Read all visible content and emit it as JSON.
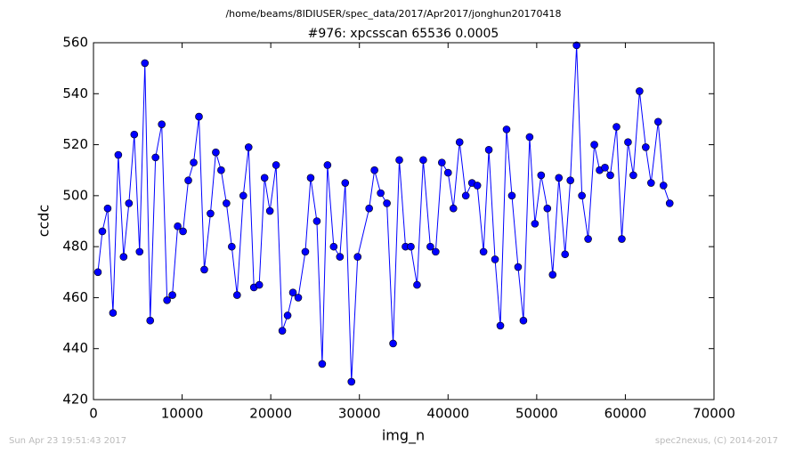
{
  "chart_data": {
    "type": "line",
    "suptitle": "/home/beams/8IDIUSER/spec_data/2017/Apr2017/jonghun20170418",
    "title": "#976: xpcsscan 65536 0.0005",
    "x_label": "img_n",
    "y_label": "ccdc",
    "footer_left": "Sun Apr 23 19:51:43 2017",
    "footer_right": "spec2nexus, (C) 2014-2017",
    "x": [
      500,
      1000,
      1600,
      2200,
      2800,
      3400,
      4000,
      4600,
      5200,
      5800,
      6400,
      7000,
      7700,
      8300,
      8900,
      9500,
      10100,
      10700,
      11300,
      11900,
      12500,
      13200,
      13800,
      14400,
      15000,
      15600,
      16200,
      16900,
      17500,
      18100,
      18700,
      19300,
      19900,
      20600,
      21300,
      21900,
      22500,
      23100,
      23900,
      24500,
      25200,
      25800,
      26400,
      27100,
      27800,
      28400,
      29100,
      29800,
      31100,
      31700,
      32400,
      33100,
      33800,
      34500,
      35200,
      35800,
      36500,
      37200,
      38000,
      38600,
      39300,
      40000,
      40600,
      41300,
      42000,
      42700,
      43300,
      44000,
      44600,
      45300,
      45900,
      46600,
      47200,
      47900,
      48500,
      49200,
      49800,
      50500,
      51200,
      51800,
      52500,
      53200,
      53800,
      54500,
      55100,
      55800,
      56500,
      57100,
      57700,
      58300,
      59000,
      59600,
      60300,
      60900,
      61600,
      62300,
      62900,
      63700,
      64300,
      65000
    ],
    "series": [
      {
        "name": "ccdc",
        "color": "#0000ff",
        "values": [
          470,
          486,
          495,
          454,
          516,
          476,
          497,
          524,
          478,
          552,
          451,
          515,
          528,
          459,
          461,
          488,
          486,
          506,
          513,
          531,
          471,
          493,
          517,
          510,
          497,
          480,
          461,
          500,
          519,
          464,
          465,
          507,
          494,
          512,
          447,
          453,
          462,
          460,
          478,
          507,
          490,
          434,
          512,
          480,
          476,
          505,
          427,
          476,
          495,
          510,
          501,
          497,
          442,
          514,
          480,
          480,
          465,
          514,
          480,
          478,
          513,
          509,
          495,
          521,
          500,
          505,
          504,
          478,
          518,
          475,
          449,
          526,
          500,
          472,
          451,
          523,
          489,
          508,
          495,
          469,
          507,
          477,
          506,
          559,
          500,
          483,
          520,
          510,
          511,
          508,
          527,
          483,
          521,
          508,
          541,
          519,
          505,
          529,
          504,
          497
        ]
      }
    ],
    "markers": true,
    "xlim": [
      0,
      70000
    ],
    "xticks": [
      0,
      10000,
      20000,
      30000,
      40000,
      50000,
      60000,
      70000
    ],
    "ylim": [
      420,
      560
    ],
    "yticks": [
      420,
      440,
      460,
      480,
      500,
      520,
      540,
      560
    ]
  }
}
